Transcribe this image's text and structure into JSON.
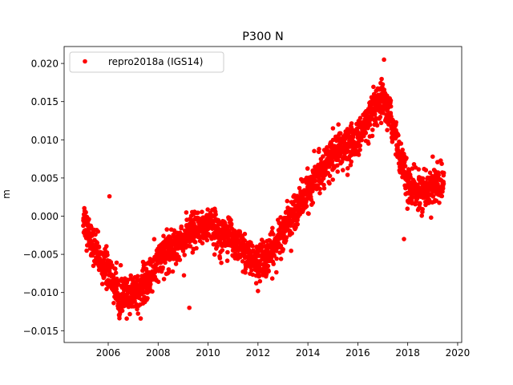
{
  "chart_data": {
    "type": "scatter",
    "title": "P300 N",
    "xlabel": "",
    "ylabel": "m",
    "xlim": [
      2004.7,
      2020.2
    ],
    "ylim": [
      -0.0165,
      0.0222
    ],
    "xticks": [
      2006,
      2008,
      2010,
      2012,
      2014,
      2016,
      2018,
      2020
    ],
    "xtick_labels": [
      "2006",
      "2008",
      "2010",
      "2012",
      "2014",
      "2016",
      "2018",
      "2020"
    ],
    "yticks": [
      -0.015,
      -0.01,
      -0.005,
      0.0,
      0.005,
      0.01,
      0.015,
      0.02
    ],
    "ytick_labels": [
      "−0.015",
      "−0.010",
      "−0.005",
      "0.000",
      "0.005",
      "0.010",
      "0.015",
      "0.020"
    ],
    "grid": false,
    "legend": {
      "placement": "top-left",
      "entries": [
        "repro2018a (IGS14)"
      ]
    },
    "series": [
      {
        "name": "repro2018a (IGS14)",
        "color": "#ff0000",
        "marker": "circle",
        "sampling_days": 2,
        "scatter_std": 0.0012,
        "trend_x": [
          2005.0,
          2005.3,
          2005.7,
          2006.0,
          2006.5,
          2007.0,
          2007.5,
          2008.0,
          2008.5,
          2009.0,
          2009.5,
          2010.0,
          2010.5,
          2011.0,
          2011.5,
          2012.0,
          2012.5,
          2013.0,
          2013.5,
          2014.0,
          2014.5,
          2015.0,
          2015.5,
          2016.0,
          2016.5,
          2017.0,
          2017.3,
          2017.7,
          2018.0,
          2018.5,
          2019.0,
          2019.45
        ],
        "trend_y": [
          0.0,
          -0.003,
          -0.006,
          -0.007,
          -0.011,
          -0.01,
          -0.009,
          -0.006,
          -0.004,
          -0.003,
          -0.002,
          -0.001,
          -0.002,
          -0.003,
          -0.005,
          -0.006,
          -0.005,
          -0.002,
          0.001,
          0.003,
          0.006,
          0.008,
          0.009,
          0.01,
          0.013,
          0.015,
          0.013,
          0.008,
          0.004,
          0.003,
          0.004,
          0.004
        ],
        "outliers": [
          [
            2017.05,
            0.0205
          ],
          [
            2017.85,
            -0.003
          ],
          [
            2009.25,
            -0.012
          ],
          [
            2006.05,
            0.0026
          ],
          [
            2019.0,
            0.0078
          ],
          [
            2012.0,
            -0.0098
          ]
        ]
      }
    ]
  }
}
